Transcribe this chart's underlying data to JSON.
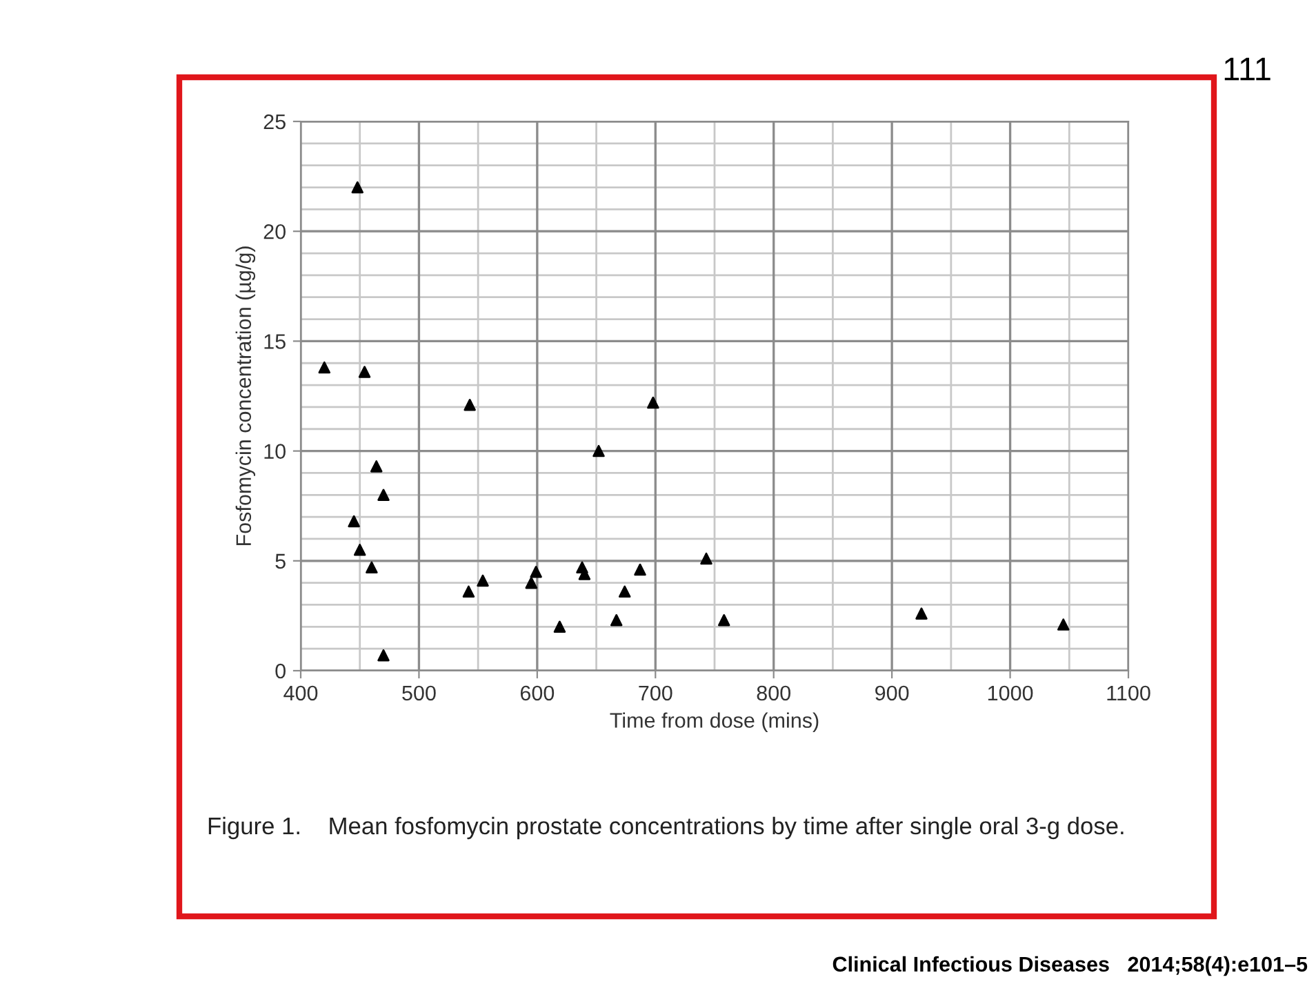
{
  "chart_data": {
    "type": "scatter",
    "title": "Figure 1.    Mean fosfomycin prostate concentrations by time after single oral 3-g dose.",
    "xlabel": "Time from dose (mins)",
    "ylabel": "Fosfomycin concentration (µg/g)",
    "x": [
      420,
      448,
      454,
      464,
      470,
      445,
      450,
      460,
      470,
      543,
      542,
      554,
      595,
      599,
      619,
      638,
      640,
      652,
      667,
      674,
      687,
      698,
      743,
      758,
      925,
      1045
    ],
    "series": [
      {
        "color": "#000000",
        "values": [
          13.8,
          22.0,
          13.6,
          9.3,
          8.0,
          6.8,
          5.5,
          4.7,
          0.7,
          12.1,
          3.6,
          4.1,
          4.0,
          4.5,
          2.0,
          4.7,
          4.4,
          10.0,
          2.3,
          3.6,
          4.6,
          12.2,
          5.1,
          2.3,
          2.6,
          2.1
        ]
      }
    ],
    "marker": "triangle",
    "grid": true,
    "xlim": [
      400,
      1100
    ],
    "xticks": [
      400,
      500,
      600,
      700,
      800,
      900,
      1000,
      1100
    ],
    "ylim": [
      0,
      25
    ],
    "yticks": [
      0,
      5,
      10,
      15,
      20,
      25
    ],
    "annotations": [
      "111",
      "Clinical Infectious Diseases   2014;58(4):e101–5"
    ]
  }
}
